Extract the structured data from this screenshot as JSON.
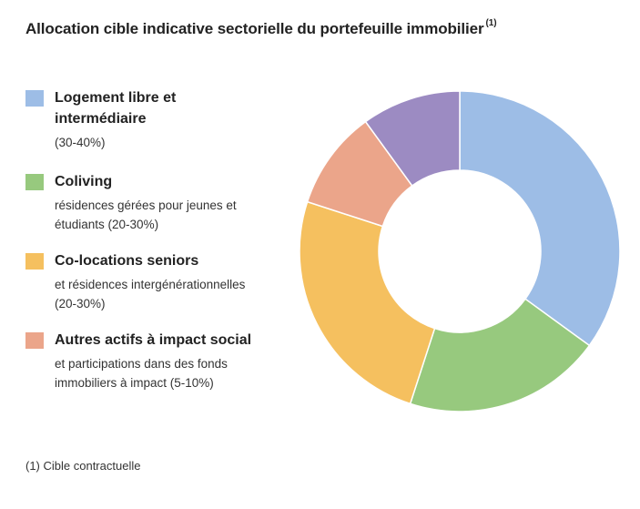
{
  "header": {
    "title": "Allocation cible indicative sectorielle du portefeuille immobilier",
    "title_note": "(1)"
  },
  "legend": [
    {
      "title": "Logement libre et intermédiaire",
      "desc": "(30-40%)",
      "color": "#9DBDE6"
    },
    {
      "title": "Coliving",
      "desc": "résidences gérées pour jeunes et étudiants (20-30%)",
      "color": "#97C97E"
    },
    {
      "title": "Co-locations seniors",
      "desc": "et résidences intergénérationnelles (20-30%)",
      "color": "#F5C05F"
    },
    {
      "title": "Autres actifs à impact social",
      "desc": "et participations dans des fonds immobiliers à impact (5-10%)",
      "color": "#EBA58A"
    }
  ],
  "footnote": "(1) Cible contractuelle",
  "chart_data": {
    "type": "pie",
    "title": "Allocation cible indicative sectorielle du portefeuille immobilier",
    "categories": [
      "Logement libre et intermédiaire",
      "Coliving",
      "Co-locations seniors",
      "Autres actifs à impact social",
      ""
    ],
    "values": [
      35,
      20,
      25,
      10,
      10
    ],
    "colors": [
      "#9DBDE6",
      "#97C97E",
      "#F5C05F",
      "#EBA58A",
      "#9C8BC2"
    ],
    "legend_position": "left"
  }
}
